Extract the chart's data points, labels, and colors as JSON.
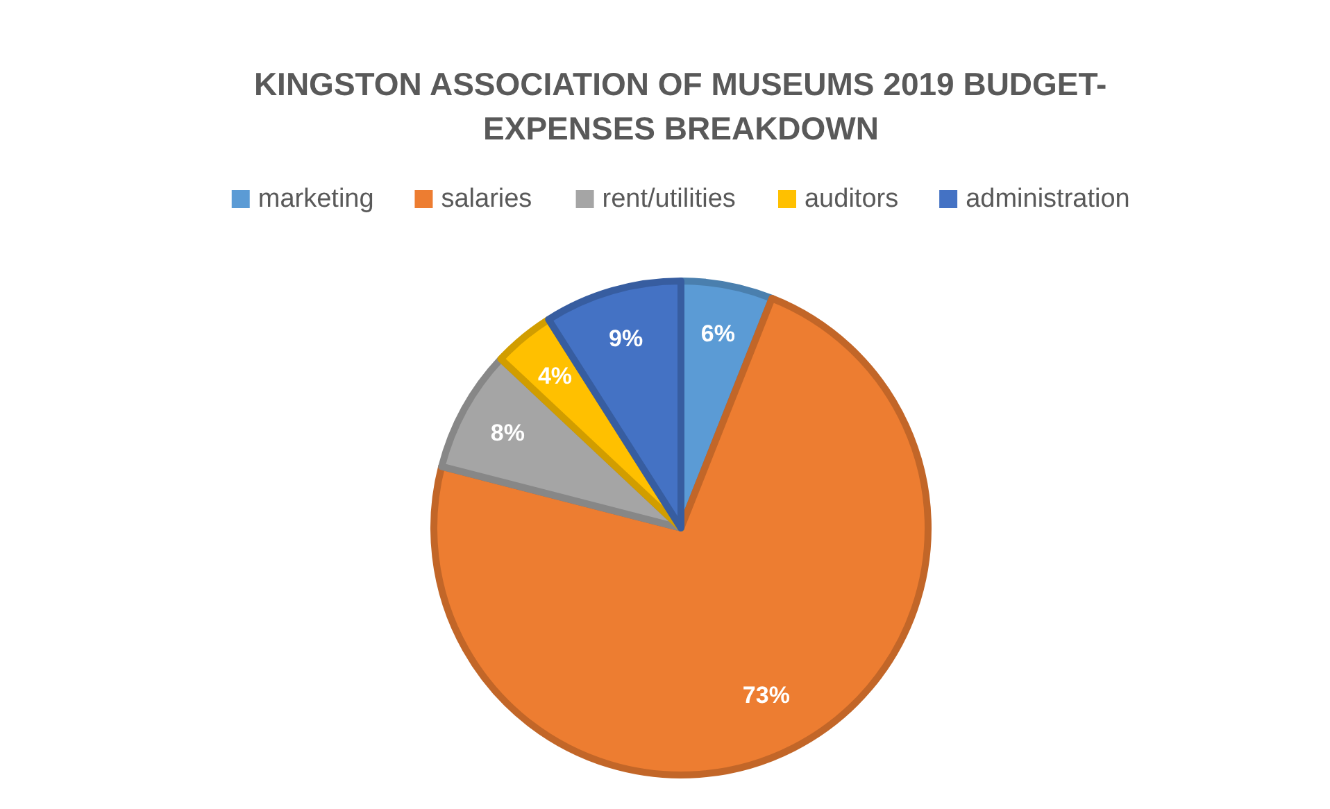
{
  "chart_data": {
    "type": "pie",
    "title": "KINGSTON ASSOCIATION OF MUSEUMS 2019 BUDGET-EXPENSES BREAKDOWN",
    "categories": [
      "marketing",
      "salaries",
      "rent/utilities",
      "auditors",
      "administration"
    ],
    "values": [
      6,
      73,
      8,
      4,
      9
    ],
    "colors": [
      "#5b9bd5",
      "#ed7d31",
      "#a5a5a5",
      "#ffc000",
      "#4472c4"
    ],
    "value_labels": [
      "6%",
      "73%",
      "8%",
      "4%",
      "9%"
    ],
    "legend": "top"
  }
}
